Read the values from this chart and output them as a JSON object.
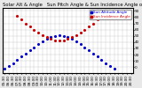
{
  "title": "Solar Alt & Angle   Sun Pitch Angle & Sun Incidence Angle on PV Panels",
  "legend_labels": [
    "Sun Altitude Angle",
    "Sun Incidence Angle"
  ],
  "time_points": [
    "05:30",
    "06:00",
    "06:30",
    "07:00",
    "07:30",
    "08:00",
    "08:30",
    "09:00",
    "09:30",
    "10:00",
    "10:30",
    "11:00",
    "11:30",
    "12:00",
    "12:30",
    "13:00",
    "13:30",
    "14:00",
    "14:30",
    "15:00",
    "15:30",
    "16:00",
    "16:30",
    "17:00",
    "17:30",
    "18:00",
    "18:30",
    "19:00",
    "19:30",
    "20:00",
    "20:30"
  ],
  "altitude_values": [
    -2,
    2,
    6,
    11,
    17,
    22,
    27,
    32,
    37,
    41,
    45,
    48,
    50,
    51,
    50,
    48,
    45,
    41,
    37,
    32,
    27,
    22,
    17,
    11,
    6,
    2,
    -2,
    null,
    null,
    null,
    null
  ],
  "incidence_values": [
    null,
    null,
    null,
    82,
    76,
    70,
    65,
    60,
    55,
    51,
    48,
    45,
    43,
    42,
    43,
    45,
    48,
    51,
    55,
    60,
    65,
    70,
    76,
    82,
    null,
    null,
    null,
    null,
    null,
    null,
    null
  ],
  "altitude_color": "#0000cc",
  "incidence_color": "#cc0000",
  "ylim": [
    -10,
    95
  ],
  "yticks": [
    0,
    10,
    20,
    30,
    40,
    50,
    60,
    70,
    80,
    90
  ],
  "bg_color": "#e8e8e8",
  "plot_bg_color": "#ffffff",
  "grid_color": "#bbbbbb",
  "title_fontsize": 3.8,
  "tick_fontsize": 3.0,
  "legend_fontsize": 3.0,
  "marker_size": 1.5
}
